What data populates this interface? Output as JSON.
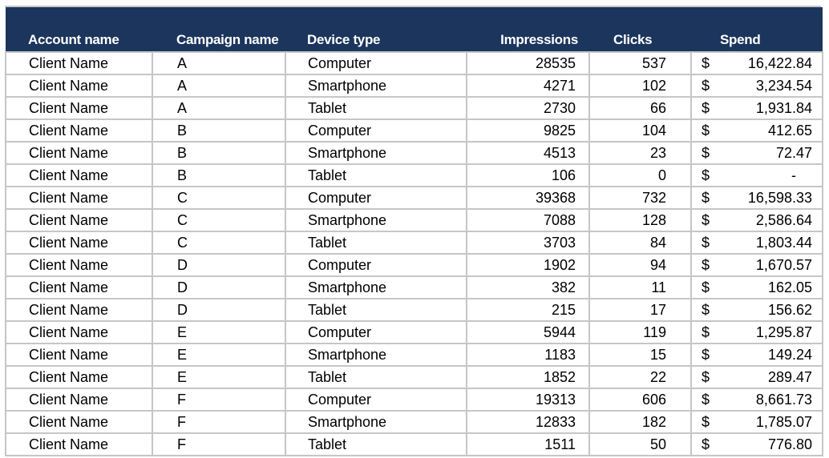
{
  "headers": {
    "account": "Account name",
    "campaign": "Campaign name",
    "device": "Device type",
    "impressions": "Impressions",
    "clicks": "Clicks",
    "spend": "Spend"
  },
  "currency_symbol": "$",
  "colors": {
    "header_bg": "#1b355d",
    "header_text": "#ffffff",
    "grid": "#c6c6c6"
  },
  "rows": [
    {
      "account": "Client Name",
      "campaign": "A",
      "device": "Computer",
      "impressions": "28535",
      "clicks": "537",
      "spend": "16,422.84"
    },
    {
      "account": "Client Name",
      "campaign": "A",
      "device": "Smartphone",
      "impressions": "4271",
      "clicks": "102",
      "spend": "3,234.54"
    },
    {
      "account": "Client Name",
      "campaign": "A",
      "device": "Tablet",
      "impressions": "2730",
      "clicks": "66",
      "spend": "1,931.84"
    },
    {
      "account": "Client Name",
      "campaign": "B",
      "device": "Computer",
      "impressions": "9825",
      "clicks": "104",
      "spend": "412.65"
    },
    {
      "account": "Client Name",
      "campaign": "B",
      "device": "Smartphone",
      "impressions": "4513",
      "clicks": "23",
      "spend": "72.47"
    },
    {
      "account": "Client Name",
      "campaign": "B",
      "device": "Tablet",
      "impressions": "106",
      "clicks": "0",
      "spend": "-"
    },
    {
      "account": "Client Name",
      "campaign": "C",
      "device": "Computer",
      "impressions": "39368",
      "clicks": "732",
      "spend": "16,598.33"
    },
    {
      "account": "Client Name",
      "campaign": "C",
      "device": "Smartphone",
      "impressions": "7088",
      "clicks": "128",
      "spend": "2,586.64"
    },
    {
      "account": "Client Name",
      "campaign": "C",
      "device": "Tablet",
      "impressions": "3703",
      "clicks": "84",
      "spend": "1,803.44"
    },
    {
      "account": "Client Name",
      "campaign": "D",
      "device": "Computer",
      "impressions": "1902",
      "clicks": "94",
      "spend": "1,670.57"
    },
    {
      "account": "Client Name",
      "campaign": "D",
      "device": "Smartphone",
      "impressions": "382",
      "clicks": "11",
      "spend": "162.05"
    },
    {
      "account": "Client Name",
      "campaign": "D",
      "device": "Tablet",
      "impressions": "215",
      "clicks": "17",
      "spend": "156.62"
    },
    {
      "account": "Client Name",
      "campaign": "E",
      "device": "Computer",
      "impressions": "5944",
      "clicks": "119",
      "spend": "1,295.87"
    },
    {
      "account": "Client Name",
      "campaign": "E",
      "device": "Smartphone",
      "impressions": "1183",
      "clicks": "15",
      "spend": "149.24"
    },
    {
      "account": "Client Name",
      "campaign": "E",
      "device": "Tablet",
      "impressions": "1852",
      "clicks": "22",
      "spend": "289.47"
    },
    {
      "account": "Client Name",
      "campaign": "F",
      "device": "Computer",
      "impressions": "19313",
      "clicks": "606",
      "spend": "8,661.73"
    },
    {
      "account": "Client Name",
      "campaign": "F",
      "device": "Smartphone",
      "impressions": "12833",
      "clicks": "182",
      "spend": "1,785.07"
    },
    {
      "account": "Client Name",
      "campaign": "F",
      "device": "Tablet",
      "impressions": "1511",
      "clicks": "50",
      "spend": "776.80"
    }
  ]
}
